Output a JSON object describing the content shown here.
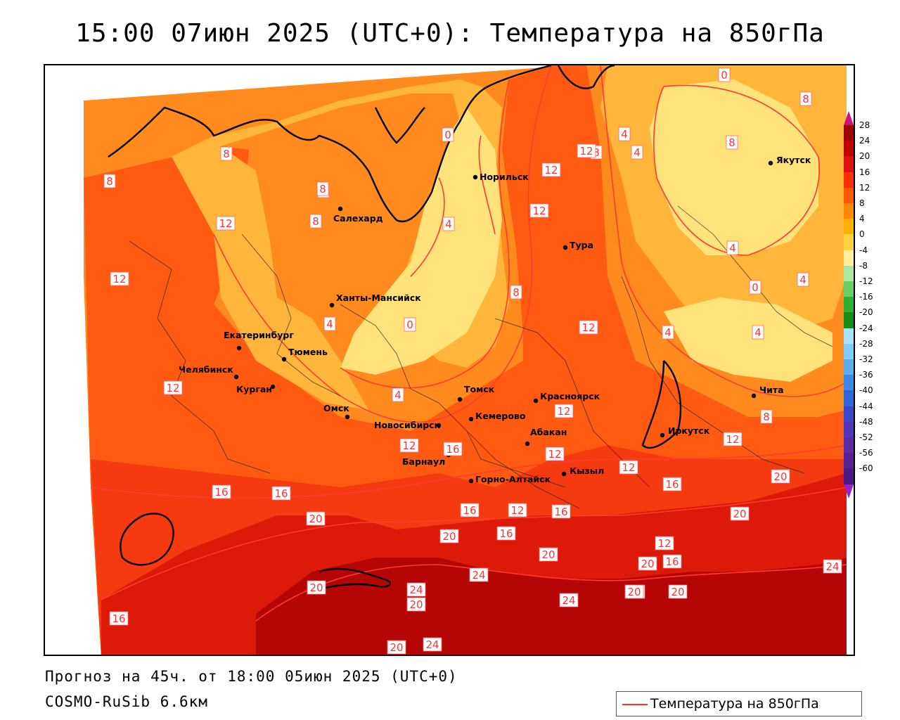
{
  "title": "15:00 07июн 2025 (UTC+0): Температура на 850гПа",
  "footer": {
    "forecast": "Прогноз на 45ч. от 18:00 05июн 2025 (UTC+0)",
    "model": "COSMO-RuSib 6.6км"
  },
  "legend": {
    "label": "Температура на 850гПа",
    "line_color": "#ff3333"
  },
  "scale": {
    "labels": [
      "28",
      "24",
      "20",
      "16",
      "12",
      "8",
      "4",
      "0",
      "-4",
      "-8",
      "-12",
      "-16",
      "-20",
      "-24",
      "-28",
      "-32",
      "-36",
      "-40",
      "-44",
      "-48",
      "-52",
      "-56",
      "-60"
    ],
    "colors": [
      "#a00000",
      "#c00000",
      "#e01010",
      "#ff3000",
      "#ff5a00",
      "#ff8a00",
      "#ffb000",
      "#ffd040",
      "#ffef9a",
      "#aee8a0",
      "#66d066",
      "#30b030",
      "#1a8c1a",
      "#a8e4ff",
      "#80ccff",
      "#60aaf0",
      "#3f88e6",
      "#2f66d8",
      "#3a48c8",
      "#4c38b8",
      "#5c2ca8",
      "#5a209a",
      "#4a1a88"
    ],
    "top_cap": "#d0107a",
    "bottom_cap": "#9a20c8"
  },
  "cities": [
    {
      "name": "Норильск"
    },
    {
      "name": "Якутск"
    },
    {
      "name": "Салехард"
    },
    {
      "name": "Тура"
    },
    {
      "name": "Ханты-Мансийск"
    },
    {
      "name": "Екатеринбург"
    },
    {
      "name": "Тюмень"
    },
    {
      "name": "Челябинск"
    },
    {
      "name": "Курган"
    },
    {
      "name": "Омск"
    },
    {
      "name": "Новосибирск"
    },
    {
      "name": "Томск"
    },
    {
      "name": "Кемерово"
    },
    {
      "name": "Красноярск"
    },
    {
      "name": "Барнаул"
    },
    {
      "name": "Абакан"
    },
    {
      "name": "Кызыл"
    },
    {
      "name": "Горно-Алтайск"
    },
    {
      "name": "Иркутск"
    },
    {
      "name": "Чита"
    }
  ],
  "isotherm_labels": [
    "0",
    "0",
    "8",
    "8",
    "8",
    "8",
    "12",
    "8",
    "4",
    "4",
    "12",
    "12",
    "4",
    "8",
    "8",
    "12",
    "8",
    "4",
    "0",
    "4",
    "0",
    "8",
    "4",
    "4",
    "12",
    "12",
    "12",
    "4",
    "4",
    "8",
    "12",
    "12",
    "16",
    "12",
    "12",
    "12",
    "16",
    "16",
    "20",
    "16",
    "16",
    "20",
    "20",
    "16",
    "16",
    "12",
    "20",
    "20",
    "16",
    "20",
    "20",
    "24",
    "20",
    "24",
    "24",
    "20",
    "16",
    "24",
    "20",
    "24",
    "20",
    "16",
    "12",
    "20"
  ],
  "map_colors": {
    "t0_4": "#ffe27a",
    "t4_8": "#ffb63a",
    "t8_12": "#ff8a1e",
    "t12_16": "#ff5a12",
    "t16_20": "#f53a10",
    "t20_24": "#dd1a0a",
    "t24_28": "#b40606",
    "contour": "#ff3b30",
    "coast": "#000000"
  }
}
